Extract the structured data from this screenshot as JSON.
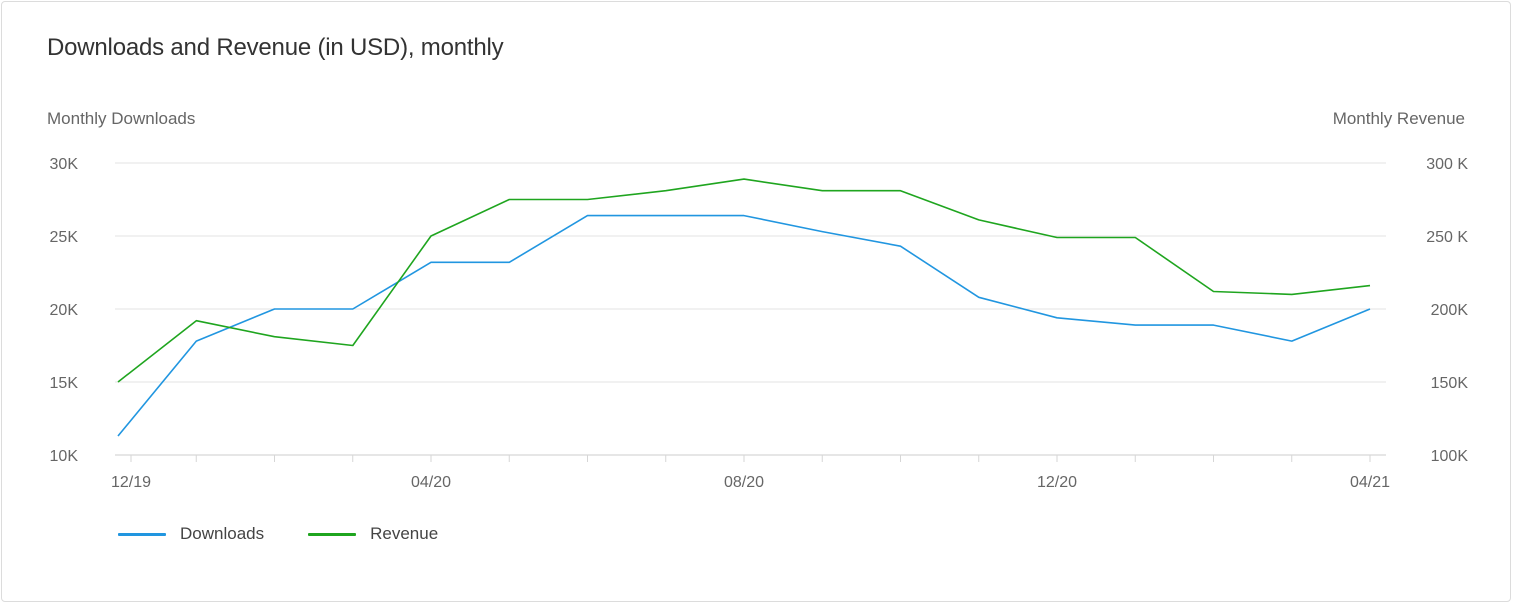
{
  "chart_data": {
    "type": "line",
    "title": "Downloads and Revenue (in USD), monthly",
    "ylabel_left": "Monthly Downloads",
    "ylabel_right": "Monthly Revenue",
    "x_tick_labels": [
      "12/19",
      "04/20",
      "08/20",
      "12/20",
      "04/21"
    ],
    "x": [
      "12/19",
      "01/20",
      "02/20",
      "03/20",
      "04/20",
      "05/20",
      "06/20",
      "07/20",
      "08/20",
      "09/20",
      "10/20",
      "11/20",
      "12/20",
      "01/21",
      "02/21",
      "03/21",
      "04/21"
    ],
    "y_left": {
      "range": [
        10000,
        30000
      ],
      "ticks": [
        10000,
        15000,
        20000,
        25000,
        30000
      ],
      "tick_labels": [
        "10K",
        "15K",
        "20K",
        "25K",
        "30K"
      ]
    },
    "y_right": {
      "range": [
        100000,
        300000
      ],
      "ticks": [
        100000,
        150000,
        200000,
        250000,
        300000
      ],
      "tick_labels": [
        "100K",
        "150K",
        "200K",
        "250 K",
        "300 K"
      ]
    },
    "grid": true,
    "legend_position": "bottom-left",
    "series": [
      {
        "name": "Downloads",
        "axis": "left",
        "color": "#2196e0",
        "values": [
          11300,
          17800,
          20000,
          20000,
          23200,
          23200,
          26400,
          26400,
          26400,
          25300,
          24300,
          20800,
          19400,
          18900,
          18900,
          17800,
          20000
        ]
      },
      {
        "name": "Revenue",
        "axis": "right",
        "color": "#1fa51f",
        "values": [
          150000,
          192000,
          181000,
          175000,
          250000,
          275000,
          275000,
          281000,
          289000,
          281000,
          281000,
          261000,
          249000,
          249000,
          212000,
          210000,
          216000
        ]
      }
    ]
  }
}
